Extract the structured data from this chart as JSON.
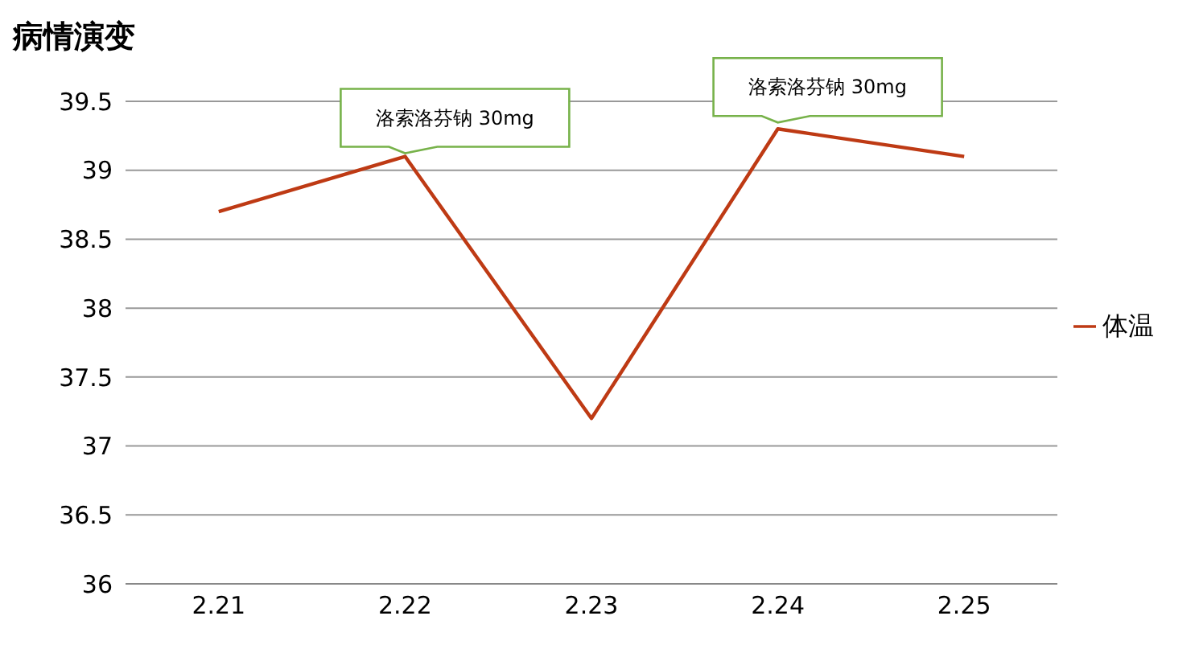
{
  "chart_data": {
    "type": "line",
    "title": "病情演变",
    "categories": [
      "2.21",
      "2.22",
      "2.23",
      "2.24",
      "2.25"
    ],
    "series": [
      {
        "name": "体温",
        "color": "#be3a14",
        "values": [
          38.7,
          39.1,
          37.2,
          39.3,
          39.1
        ]
      }
    ],
    "ylim": [
      36,
      39.5
    ],
    "yticks": [
      36,
      36.5,
      37,
      37.5,
      38,
      38.5,
      39,
      39.5
    ],
    "grid": "y",
    "legend": "right",
    "marker": "none",
    "annotations": [
      {
        "text": "洛索洛芬钠 30mg",
        "x": "2.22",
        "y": 39.1
      },
      {
        "text": "洛索洛芬钠 30mg",
        "x": "2.24",
        "y": 39.3
      }
    ]
  }
}
